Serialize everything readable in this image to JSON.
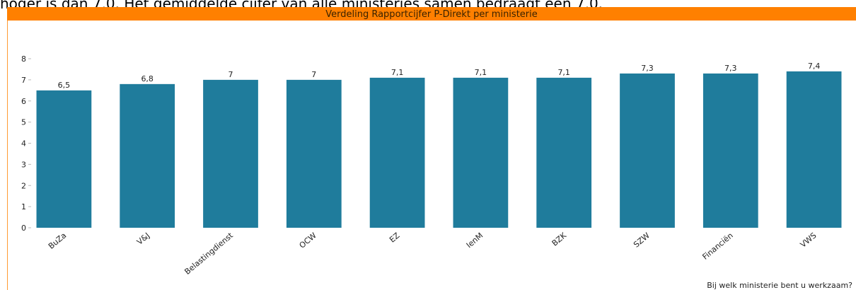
{
  "intro_text": "hoger is dan 7,0. Het gemiddelde cijfer van alle ministeries samen bedraagt een 7,0.",
  "chart_data": {
    "type": "bar",
    "title": "Verdeling Rapportcijfer P-Direkt per ministerie",
    "x_label": "Bij welk ministerie bent u werkzaam?",
    "categories": [
      "BuZa",
      "V&J",
      "Belastingdienst",
      "OCW",
      "EZ",
      "IenM",
      "BZK",
      "SZW",
      "Financiën",
      "VWS"
    ],
    "values": [
      6.5,
      6.8,
      7,
      7,
      7.1,
      7.1,
      7.1,
      7.3,
      7.3,
      7.4
    ],
    "value_labels": [
      "6,5",
      "6,8",
      "7",
      "7",
      "7,1",
      "7,1",
      "7,1",
      "7,3",
      "7,3",
      "7,4"
    ],
    "color": "#1f7c9c",
    "ylim": [
      0,
      8
    ],
    "yticks": [
      0,
      1,
      2,
      3,
      4,
      5,
      6,
      7,
      8
    ]
  }
}
